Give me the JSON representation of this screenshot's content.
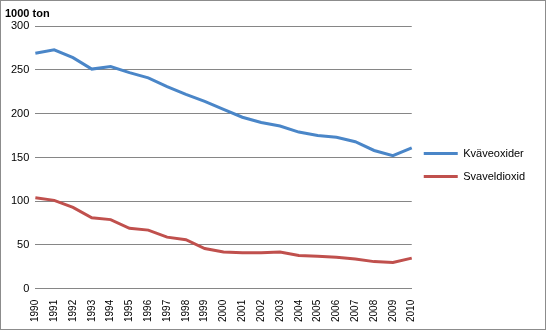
{
  "chart_data": {
    "type": "line",
    "ylabel": "1000 ton",
    "categories": [
      "1990",
      "1991",
      "1992",
      "1993",
      "1994",
      "1995",
      "1996",
      "1997",
      "1998",
      "1999",
      "2000",
      "2001",
      "2002",
      "2003",
      "2004",
      "2005",
      "2006",
      "2007",
      "2008",
      "2009",
      "2010"
    ],
    "series": [
      {
        "name": "Kväveoxider",
        "color": "#4a86c8",
        "values": [
          269,
          273,
          264,
          251,
          254,
          247,
          241,
          231,
          222,
          214,
          205,
          196,
          190,
          186,
          179,
          175,
          173,
          168,
          158,
          152,
          161
        ]
      },
      {
        "name": "Svaveldioxid",
        "color": "#c0504d",
        "values": [
          104,
          101,
          93,
          81,
          79,
          69,
          67,
          59,
          56,
          46,
          42,
          41,
          41,
          42,
          38,
          37,
          36,
          34,
          31,
          30,
          35
        ]
      }
    ],
    "ylim": [
      0,
      300
    ],
    "yticks": [
      0,
      50,
      100,
      150,
      200,
      250,
      300
    ],
    "grid": true,
    "legend": "right"
  }
}
